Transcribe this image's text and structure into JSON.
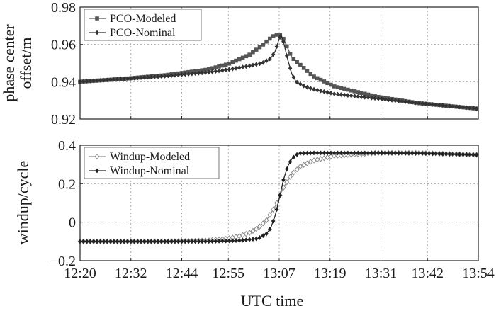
{
  "chart_data": [
    {
      "type": "line",
      "ylabel_lines": [
        "phase center",
        "offset/m"
      ],
      "xlabel": "",
      "ylim": [
        0.92,
        0.98
      ],
      "yticks": [
        0.92,
        0.94,
        0.96,
        0.98
      ],
      "ytick_labels": [
        "0.92",
        "0.94",
        "0.96",
        "0.98"
      ],
      "x_ticks": [
        "12:20",
        "12:32",
        "12:44",
        "12:55",
        "13:07",
        "13:19",
        "13:31",
        "13:42",
        "13:54"
      ],
      "x_tick_minutes": [
        740,
        752,
        764,
        775,
        787,
        799,
        811,
        822,
        834
      ],
      "xlim_minutes": [
        740,
        834
      ],
      "legend_position": "top-left",
      "grid": true,
      "series": [
        {
          "name": "PCO-Modeled",
          "color": "#555555",
          "marker": "square",
          "x": [
            740,
            750,
            760,
            770,
            775,
            780,
            783,
            785,
            786,
            787,
            788,
            790,
            795,
            800,
            810,
            820,
            834
          ],
          "values": [
            0.94,
            0.9415,
            0.9435,
            0.9465,
            0.9495,
            0.9545,
            0.9595,
            0.9635,
            0.965,
            0.9655,
            0.963,
            0.953,
            0.943,
            0.9375,
            0.932,
            0.9285,
            0.9255
          ]
        },
        {
          "name": "PCO-Nominal",
          "color": "#333333",
          "marker": "diamond",
          "x": [
            740,
            750,
            760,
            770,
            775,
            780,
            783,
            785,
            786,
            787,
            787.5,
            788,
            789,
            790,
            791,
            793,
            795,
            800,
            810,
            820,
            834
          ],
          "values": [
            0.94,
            0.9415,
            0.943,
            0.945,
            0.9465,
            0.9485,
            0.95,
            0.9525,
            0.956,
            0.963,
            0.965,
            0.9615,
            0.952,
            0.944,
            0.94,
            0.9375,
            0.936,
            0.9335,
            0.931,
            0.9285,
            0.9255
          ]
        }
      ]
    },
    {
      "type": "line",
      "ylabel_lines": [
        "windup/cycle"
      ],
      "xlabel": "UTC time",
      "ylim": [
        -0.2,
        0.4
      ],
      "yticks": [
        -0.2,
        0,
        0.2,
        0.4
      ],
      "ytick_labels": [
        "−0.2",
        "0",
        "0.2",
        "0.4"
      ],
      "x_ticks": [
        "12:20",
        "12:32",
        "12:44",
        "12:55",
        "13:07",
        "13:19",
        "13:31",
        "13:42",
        "13:54"
      ],
      "x_tick_minutes": [
        740,
        752,
        764,
        775,
        787,
        799,
        811,
        822,
        834
      ],
      "xlim_minutes": [
        740,
        834
      ],
      "legend_position": "top-left",
      "grid": true,
      "series": [
        {
          "name": "Windup-Modeled",
          "color": "#8a8a8a",
          "marker": "diamond-open",
          "x": [
            740,
            760,
            770,
            775,
            778,
            780,
            782,
            784,
            786,
            787,
            788,
            790,
            792,
            795,
            800,
            810,
            820,
            834
          ],
          "values": [
            -0.1,
            -0.1,
            -0.095,
            -0.085,
            -0.07,
            -0.055,
            -0.03,
            0.01,
            0.08,
            0.13,
            0.18,
            0.25,
            0.29,
            0.32,
            0.345,
            0.36,
            0.36,
            0.35
          ]
        },
        {
          "name": "Windup-Nominal",
          "color": "#222222",
          "marker": "diamond",
          "x": [
            740,
            770,
            778,
            782,
            784,
            785,
            786,
            787,
            788,
            789,
            790,
            791,
            792,
            795,
            800,
            810,
            820,
            834
          ],
          "values": [
            -0.1,
            -0.1,
            -0.095,
            -0.085,
            -0.06,
            -0.03,
            0.03,
            0.12,
            0.22,
            0.29,
            0.33,
            0.35,
            0.358,
            0.36,
            0.36,
            0.36,
            0.358,
            0.35
          ]
        }
      ]
    }
  ]
}
